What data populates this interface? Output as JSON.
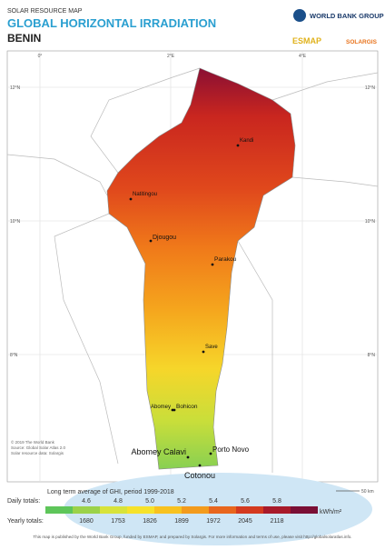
{
  "header": {
    "kicker": "SOLAR RESOURCE MAP",
    "title": "GLOBAL HORIZONTAL IRRADIATION",
    "country": "BENIN",
    "logos": [
      "WORLD BANK GROUP",
      "ESMAP",
      "SOLARGIS"
    ]
  },
  "graticule": {
    "longitudes": [
      "0°",
      "2°E",
      "4°E"
    ],
    "latitudes": [
      "12°N",
      "10°N",
      "8°N"
    ]
  },
  "cities": [
    "Kandi",
    "Natitingou",
    "Djougou",
    "Parakou",
    "Save",
    "Abomey",
    "Bohicon",
    "Abomey Calavi",
    "Porto Novo",
    "Cotonou"
  ],
  "credits": [
    "© 2019 The World Bank",
    "Source: Global Solar Atlas 2.0",
    "Solar resource data: Solargis"
  ],
  "scale": "50 km",
  "legend": {
    "title": "Long term average of GHI, period 1999-2018",
    "daily_label": "Daily totals:",
    "daily": [
      "4.6",
      "4.8",
      "5.0",
      "5.2",
      "5.4",
      "5.6",
      "5.8"
    ],
    "unit": "kWh/m²",
    "yearly_label": "Yearly totals:",
    "yearly": [
      "1680",
      "1753",
      "1826",
      "1899",
      "1972",
      "2045",
      "2118"
    ],
    "colors": [
      "#5ec65a",
      "#9bd24a",
      "#d8e33a",
      "#f6e22a",
      "#f8c21f",
      "#f39b1c",
      "#e8661d",
      "#d43a1f",
      "#a81a2a",
      "#7a0f35"
    ]
  },
  "footer": "This map is published by the World Bank Group, funded by ESMAP, and prepared by Solargis. For more information and terms of use, please visit http://globalsolaratlas.info."
}
